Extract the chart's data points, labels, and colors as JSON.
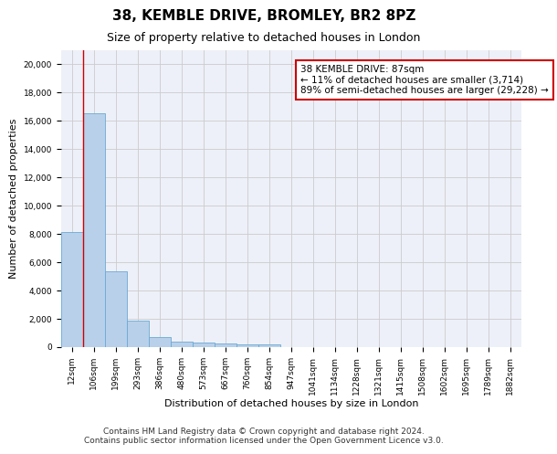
{
  "title_line1": "38, KEMBLE DRIVE, BROMLEY, BR2 8PZ",
  "title_line2": "Size of property relative to detached houses in London",
  "xlabel": "Distribution of detached houses by size in London",
  "ylabel": "Number of detached properties",
  "categories": [
    "12sqm",
    "106sqm",
    "199sqm",
    "293sqm",
    "386sqm",
    "480sqm",
    "573sqm",
    "667sqm",
    "760sqm",
    "854sqm",
    "947sqm",
    "1041sqm",
    "1134sqm",
    "1228sqm",
    "1321sqm",
    "1415sqm",
    "1508sqm",
    "1602sqm",
    "1695sqm",
    "1789sqm",
    "1882sqm"
  ],
  "values": [
    8100,
    16500,
    5300,
    1850,
    700,
    380,
    280,
    200,
    160,
    130,
    0,
    0,
    0,
    0,
    0,
    0,
    0,
    0,
    0,
    0,
    0
  ],
  "bar_color": "#b8d0ea",
  "bar_edge_color": "#6aaad4",
  "annotation_line1": "38 KEMBLE DRIVE: 87sqm",
  "annotation_line2": "← 11% of detached houses are smaller (3,714)",
  "annotation_line3": "89% of semi-detached houses are larger (29,228) →",
  "annotation_box_color": "#ffffff",
  "annotation_box_edge_color": "#cc0000",
  "vline_x": 1,
  "vline_color": "#cc0000",
  "ylim": [
    0,
    21000
  ],
  "yticks": [
    0,
    2000,
    4000,
    6000,
    8000,
    10000,
    12000,
    14000,
    16000,
    18000,
    20000
  ],
  "grid_color": "#cccccc",
  "bg_color": "#edf0f8",
  "footnote": "Contains HM Land Registry data © Crown copyright and database right 2024.\nContains public sector information licensed under the Open Government Licence v3.0.",
  "title_fontsize": 11,
  "subtitle_fontsize": 9,
  "axis_label_fontsize": 8,
  "tick_fontsize": 6.5,
  "annotation_fontsize": 7.5,
  "footnote_fontsize": 6.5
}
